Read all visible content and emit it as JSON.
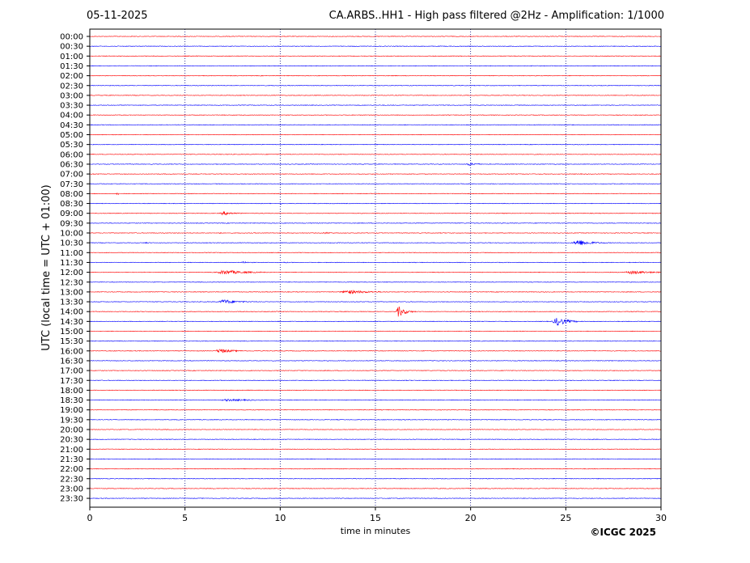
{
  "header": {
    "date": "05-11-2025",
    "title": "CA.ARBS..HH1 - High pass filtered @2Hz - Amplification: 1/1000"
  },
  "footer": {
    "copyright": "©ICGC 2025"
  },
  "chart_data": {
    "type": "line",
    "xlabel": "time in minutes",
    "ylabel": "UTC (local time = UTC + 01:00)",
    "xlim": [
      0,
      30
    ],
    "xticks": [
      0,
      5,
      10,
      15,
      20,
      25,
      30
    ],
    "yticks": [
      "00:00",
      "00:30",
      "01:00",
      "01:30",
      "02:00",
      "02:30",
      "03:00",
      "03:30",
      "04:00",
      "04:30",
      "05:00",
      "05:30",
      "06:00",
      "06:30",
      "07:00",
      "07:30",
      "08:00",
      "08:30",
      "09:00",
      "09:30",
      "10:00",
      "10:30",
      "11:00",
      "11:30",
      "12:00",
      "12:30",
      "13:00",
      "13:30",
      "14:00",
      "14:30",
      "15:00",
      "15:30",
      "16:00",
      "16:30",
      "17:00",
      "17:30",
      "18:00",
      "18:30",
      "19:00",
      "19:30",
      "20:00",
      "20:30",
      "21:00",
      "21:30",
      "22:00",
      "22:30",
      "23:00",
      "23:30"
    ],
    "trace_colors": [
      "#ff0000",
      "#0000ff"
    ],
    "grid": "vertical dotted at major x ticks",
    "events": [
      {
        "trace": "06:30",
        "x": 19.9,
        "amp": 2.0,
        "width": 0.9
      },
      {
        "trace": "08:00",
        "x": 1.4,
        "amp": 2.0,
        "width": 0.35
      },
      {
        "trace": "08:30",
        "x": 10.0,
        "amp": 1.5,
        "width": 0.15
      },
      {
        "trace": "09:00",
        "x": 7.0,
        "amp": 2.5,
        "width": 1.0
      },
      {
        "trace": "10:00",
        "x": 12.3,
        "amp": 1.2,
        "width": 0.8
      },
      {
        "trace": "10:00",
        "x": 6.8,
        "amp": 1.0,
        "width": 0.5
      },
      {
        "trace": "10:30",
        "x": 25.6,
        "amp": 4.5,
        "width": 1.2
      },
      {
        "trace": "10:30",
        "x": 2.9,
        "amp": 1.0,
        "width": 0.5
      },
      {
        "trace": "11:30",
        "x": 8.0,
        "amp": 2.0,
        "width": 0.4
      },
      {
        "trace": "11:30",
        "x": 10.2,
        "amp": 1.0,
        "width": 0.5
      },
      {
        "trace": "12:00",
        "x": 7.0,
        "amp": 3.0,
        "width": 2.0
      },
      {
        "trace": "12:00",
        "x": 28.4,
        "amp": 2.5,
        "width": 1.8
      },
      {
        "trace": "13:00",
        "x": 13.5,
        "amp": 2.5,
        "width": 2.0
      },
      {
        "trace": "13:30",
        "x": 7.0,
        "amp": 3.0,
        "width": 1.3
      },
      {
        "trace": "14:00",
        "x": 16.2,
        "amp": 7.0,
        "width": 0.6
      },
      {
        "trace": "14:30",
        "x": 24.5,
        "amp": 6.0,
        "width": 0.9
      },
      {
        "trace": "16:00",
        "x": 6.8,
        "amp": 3.0,
        "width": 1.2
      },
      {
        "trace": "18:30",
        "x": 7.2,
        "amp": 1.5,
        "width": 2.5
      }
    ]
  }
}
